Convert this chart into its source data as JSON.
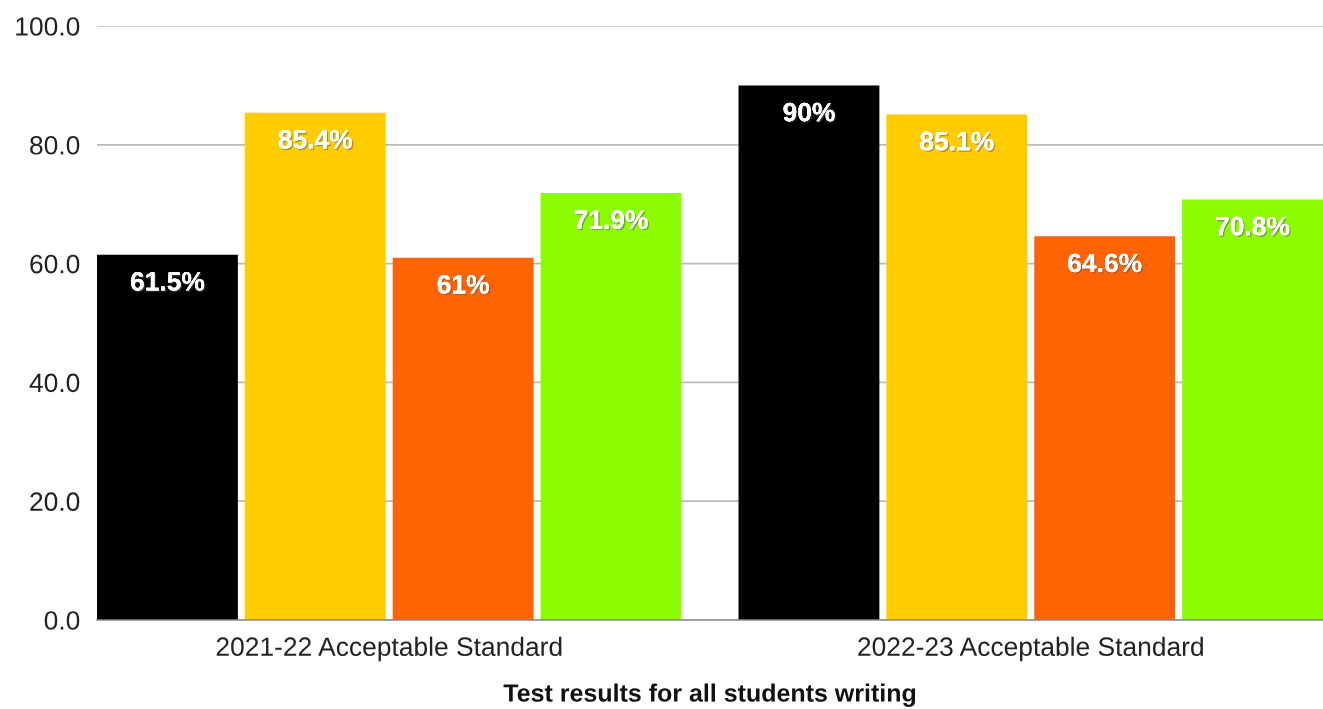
{
  "chart_data": {
    "type": "bar",
    "xlabel": "Test results for all students writing",
    "categories": [
      "2021-22 Acceptable Standard",
      "2022-23 Acceptable Standard"
    ],
    "series": [
      {
        "color": "#000000",
        "values": [
          61.5,
          90
        ],
        "value_labels": [
          "61.5%",
          "90%"
        ]
      },
      {
        "color": "#ffcc00",
        "values": [
          85.4,
          85.1
        ],
        "value_labels": [
          "85.4%",
          "85.1%"
        ]
      },
      {
        "color": "#ff6404",
        "values": [
          61,
          64.6
        ],
        "value_labels": [
          "61%",
          "64.6%"
        ]
      },
      {
        "color": "#8cfc00",
        "values": [
          71.9,
          70.8
        ],
        "value_labels": [
          "71.9%",
          "70.8%"
        ]
      }
    ],
    "ylim": [
      0,
      100
    ],
    "yticks": [
      {
        "value": 0,
        "label": "0.0"
      },
      {
        "value": 20,
        "label": "20.0"
      },
      {
        "value": 40,
        "label": "40.0"
      },
      {
        "value": 60,
        "label": "60.0"
      },
      {
        "value": 80,
        "label": "80.0"
      },
      {
        "value": 100,
        "label": "100.0"
      }
    ],
    "grid": "y"
  }
}
